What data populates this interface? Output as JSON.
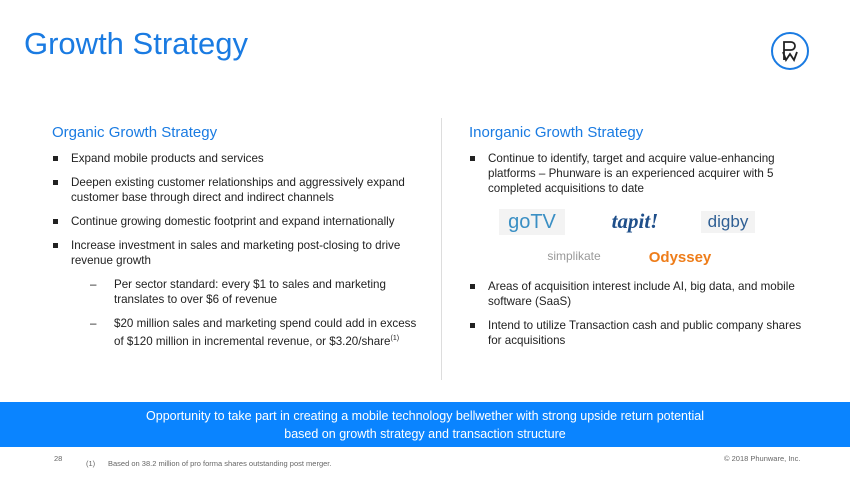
{
  "title": "Growth Strategy",
  "left": {
    "heading": "Organic Growth Strategy",
    "bullets": [
      "Expand mobile products and services",
      "Deepen existing customer relationships and aggressively expand customer base through direct and indirect channels",
      "Continue growing domestic footprint and expand internationally",
      "Increase investment in sales and marketing post-closing to drive revenue growth"
    ],
    "subs": [
      "Per sector standard: every $1 to sales and marketing translates to over $6 of revenue",
      "$20 million sales and marketing spend could add in excess of $120 million in incremental revenue, or $3.20/share"
    ],
    "sub_footnote_mark": "(1)"
  },
  "right": {
    "heading": "Inorganic Growth Strategy",
    "bullets": [
      "Continue to identify, target and acquire value-enhancing platforms – Phunware is an experienced acquirer with 5 completed acquisitions to date",
      "Areas of acquisition interest include AI, big data, and mobile software (SaaS)",
      "Intend to utilize Transaction cash and public company shares for acquisitions"
    ],
    "logos": [
      "goTV",
      "tapit!",
      "digby",
      "simplikate",
      "Odyssey"
    ]
  },
  "banner": {
    "line1": "Opportunity to take part in creating a mobile technology bellwether with strong upside return potential",
    "line2": "based on growth strategy and transaction structure"
  },
  "footer": {
    "page": "28",
    "footnote_mark": "(1)",
    "footnote": "Based on 38.2 million of pro forma shares outstanding post merger.",
    "copyright": "© 2018 Phunware, Inc."
  },
  "colors": {
    "accent": "#1a7be2",
    "banner": "#0a84ff"
  }
}
